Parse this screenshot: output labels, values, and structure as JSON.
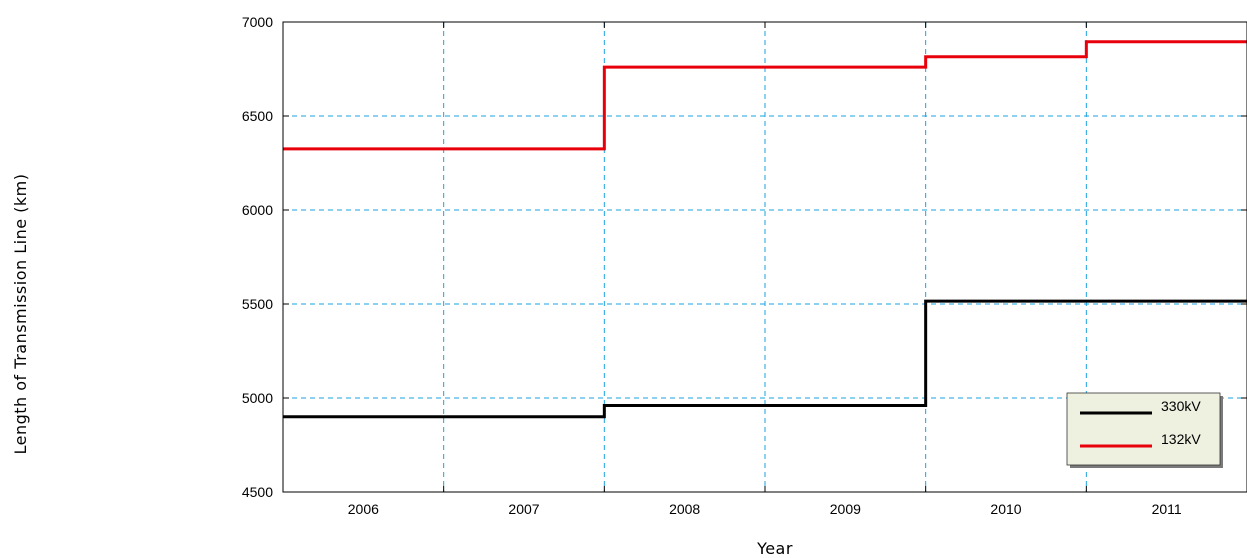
{
  "chart_data": {
    "type": "line",
    "step": true,
    "xlabel": "Year",
    "ylabel": "Length of Transmission Line (km)",
    "categories": [
      "2006",
      "2007",
      "2008",
      "2009",
      "2010",
      "2011"
    ],
    "x_range": [
      2005.5,
      2011.5
    ],
    "ylim": [
      4500,
      7000
    ],
    "yticks": [
      4500,
      5000,
      5500,
      6000,
      6500,
      7000
    ],
    "grid": true,
    "legend_position": "bottom-right",
    "series": [
      {
        "name": "330kV",
        "color": "#000000",
        "points": [
          {
            "x": 2005.5,
            "y": 4900
          },
          {
            "x": 2007.5,
            "y": 4900
          },
          {
            "x": 2007.5,
            "y": 4960
          },
          {
            "x": 2009.5,
            "y": 4960
          },
          {
            "x": 2009.5,
            "y": 5515
          },
          {
            "x": 2011.5,
            "y": 5515
          }
        ]
      },
      {
        "name": "132kV",
        "color": "#e8000b",
        "points": [
          {
            "x": 2005.5,
            "y": 6325
          },
          {
            "x": 2007.5,
            "y": 6325
          },
          {
            "x": 2007.5,
            "y": 6760
          },
          {
            "x": 2009.5,
            "y": 6760
          },
          {
            "x": 2009.5,
            "y": 6815
          },
          {
            "x": 2010.5,
            "y": 6815
          },
          {
            "x": 2010.5,
            "y": 6895
          },
          {
            "x": 2011.5,
            "y": 6895
          }
        ]
      }
    ]
  },
  "colors": {
    "grid": "#1aa3e0",
    "legend_background": "#eef0e0"
  }
}
